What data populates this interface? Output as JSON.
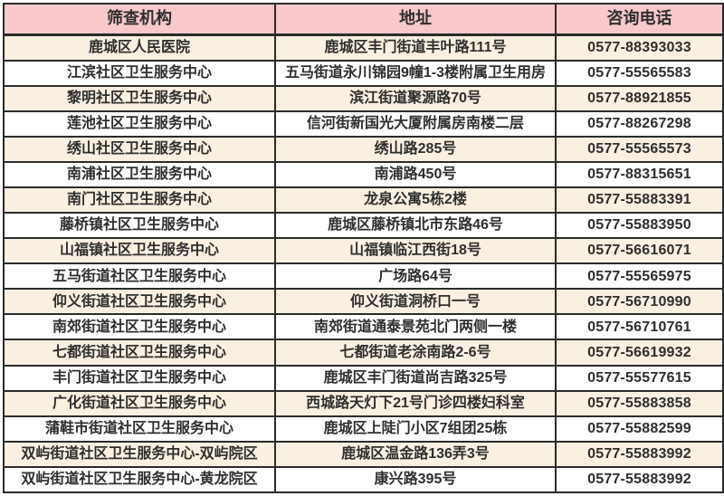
{
  "colors": {
    "header_bg": "#f8c8ca",
    "row_alt_bg": "#faf0e1",
    "row_bg": "#ffffff",
    "border": "#2b2b2b",
    "text": "#2e2e2e"
  },
  "table": {
    "columns": [
      {
        "key": "institution",
        "label": "筛查机构"
      },
      {
        "key": "address",
        "label": "地址"
      },
      {
        "key": "phone",
        "label": "咨询电话"
      }
    ],
    "rows": [
      {
        "institution": "鹿城区人民医院",
        "address": "鹿城区丰门街道丰叶路111号",
        "phone": "0577-88393033"
      },
      {
        "institution": "江滨社区卫生服务中心",
        "address": "五马街道永川锦园9幢1-3楼附属卫生用房",
        "phone": "0577-55565583"
      },
      {
        "institution": "黎明社区卫生服务中心",
        "address": "滨江街道聚源路70号",
        "phone": "0577-88921855"
      },
      {
        "institution": "莲池社区卫生服务中心",
        "address": "信河街新国光大厦附属房南楼二层",
        "phone": "0577-88267298"
      },
      {
        "institution": "绣山社区卫生服务中心",
        "address": "绣山路285号",
        "phone": "0577-55565573"
      },
      {
        "institution": "南浦社区卫生服务中心",
        "address": "南浦路450号",
        "phone": "0577-88315651"
      },
      {
        "institution": "南门社区卫生服务中心",
        "address": "龙泉公寓5栋2楼",
        "phone": "0577-55883391"
      },
      {
        "institution": "藤桥镇社区卫生服务中心",
        "address": "鹿城区藤桥镇北市东路46号",
        "phone": "0577-55883950"
      },
      {
        "institution": "山福镇社区卫生服务中心",
        "address": "山福镇临江西街18号",
        "phone": "0577-56616071"
      },
      {
        "institution": "五马街道社区卫生服务中心",
        "address": "广场路64号",
        "phone": "0577-55565975"
      },
      {
        "institution": "仰义街道社区卫生服务中心",
        "address": "仰义街道洞桥口一号",
        "phone": "0577-56710990"
      },
      {
        "institution": "南郊街道社区卫生服务中心",
        "address": "南郊街道通泰景苑北门两侧一楼",
        "phone": "0577-56710761"
      },
      {
        "institution": "七都街道社区卫生服务中心",
        "address": "七都街道老涂南路2-6号",
        "phone": "0577-56619932"
      },
      {
        "institution": "丰门街道社区卫生服务中心",
        "address": "鹿城区丰门街道尚吉路325号",
        "phone": "0577-55577615"
      },
      {
        "institution": "广化街道社区卫生服务中心",
        "address": "西城路天灯下21号门诊四楼妇科室",
        "phone": "0577-55883858"
      },
      {
        "institution": "蒲鞋市街道社区卫生服务中心",
        "address": "鹿城区上陡门小区7组团25栋",
        "phone": "0577-55882599"
      },
      {
        "institution": "双屿街道社区卫生服务中心-双屿院区",
        "address": "鹿城区温金路136弄3号",
        "phone": "0577-55883992"
      },
      {
        "institution": "双屿街道社区卫生服务中心-黄龙院区",
        "address": "康兴路395号",
        "phone": "0577-55883992"
      }
    ]
  }
}
